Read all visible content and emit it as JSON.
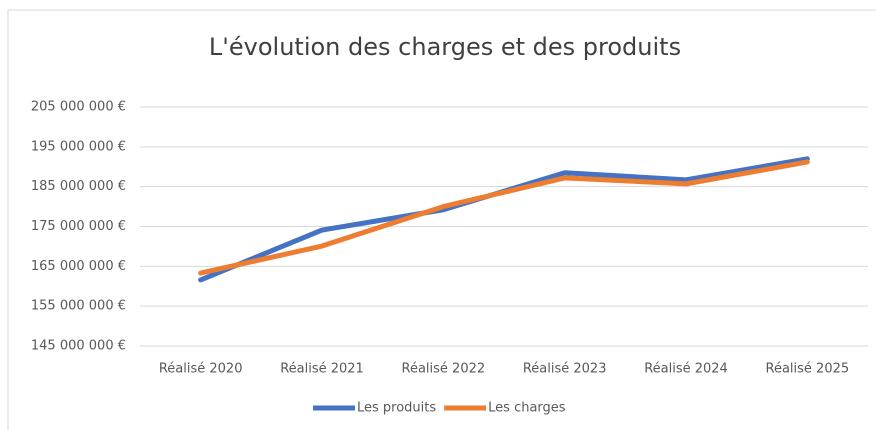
{
  "chart_data": {
    "type": "line",
    "title": "L'évolution des charges et des  produits",
    "categories": [
      "Réalisé 2020",
      "Réalisé 2021",
      "Réalisé 2022",
      "Réalisé 2023",
      "Réalisé 2024",
      "Réalisé 2025"
    ],
    "series": [
      {
        "name": "Les produits",
        "color": "#4472c4",
        "values": [
          161600000,
          174100000,
          179200000,
          188500000,
          186700000,
          192000000
        ]
      },
      {
        "name": "Les charges",
        "color": "#ed7d31",
        "values": [
          163300000,
          170100000,
          180000000,
          187200000,
          185700000,
          191200000
        ]
      }
    ],
    "ylim": [
      145000000,
      205000000
    ],
    "yticks": [
      {
        "value": 145000000,
        "label": "145 000 000 €"
      },
      {
        "value": 155000000,
        "label": "155 000 000 €"
      },
      {
        "value": 165000000,
        "label": "165 000 000 €"
      },
      {
        "value": 175000000,
        "label": "175 000 000 €"
      },
      {
        "value": 185000000,
        "label": "185 000 000 €"
      },
      {
        "value": 195000000,
        "label": "195 000 000 €"
      },
      {
        "value": 205000000,
        "label": "205 000 000 €"
      }
    ],
    "grid": true,
    "legend": "bottom"
  }
}
